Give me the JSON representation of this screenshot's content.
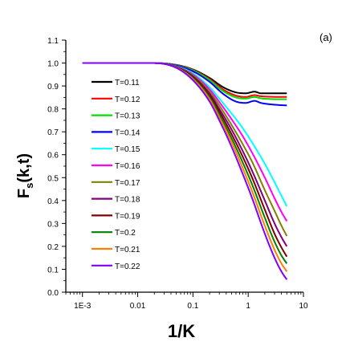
{
  "panel_label": "(a)",
  "chart_data": {
    "type": "line",
    "xlabel": "1/K",
    "ylabel": "F_s(k,t)",
    "ylabel_main": "F",
    "ylabel_sub": "s",
    "ylabel_args": "(k,t)",
    "x_scale": "log",
    "xlim": [
      0.0005,
      10
    ],
    "ylim": [
      0.0,
      1.1
    ],
    "x_ticks": [
      0.001,
      0.01,
      0.1,
      1,
      10
    ],
    "x_tick_labels": [
      "1E-3",
      "0.01",
      "0.1",
      "1",
      "10"
    ],
    "y_ticks": [
      0.0,
      0.1,
      0.2,
      0.3,
      0.4,
      0.5,
      0.6,
      0.7,
      0.8,
      0.9,
      1.0,
      1.1
    ],
    "y_tick_labels": [
      "0.0",
      "0.1",
      "0.2",
      "0.3",
      "0.4",
      "0.5",
      "0.6",
      "0.7",
      "0.8",
      "0.9",
      "1.0",
      "1.1"
    ],
    "grid": false,
    "legend_position": "left-center",
    "series": [
      {
        "name": "T=0.11",
        "color": "#000000",
        "x": [
          0.001,
          0.02,
          0.05,
          0.1,
          0.2,
          0.35,
          0.6,
          0.9,
          1.3,
          1.7,
          2.5,
          3.5,
          5.0
        ],
        "y": [
          1.0,
          1.0,
          0.992,
          0.972,
          0.935,
          0.895,
          0.872,
          0.868,
          0.875,
          0.868,
          0.868,
          0.868,
          0.868
        ]
      },
      {
        "name": "T=0.12",
        "color": "#ff0000",
        "x": [
          0.001,
          0.02,
          0.05,
          0.1,
          0.2,
          0.35,
          0.6,
          0.9,
          1.3,
          1.7,
          2.5,
          3.5,
          5.0
        ],
        "y": [
          1.0,
          1.0,
          0.991,
          0.97,
          0.93,
          0.885,
          0.858,
          0.852,
          0.86,
          0.855,
          0.853,
          0.852,
          0.852
        ]
      },
      {
        "name": "T=0.13",
        "color": "#00dd00",
        "x": [
          0.001,
          0.02,
          0.05,
          0.1,
          0.2,
          0.35,
          0.6,
          0.9,
          1.3,
          1.7,
          2.5,
          3.5,
          5.0
        ],
        "y": [
          1.0,
          1.0,
          0.99,
          0.968,
          0.926,
          0.878,
          0.85,
          0.845,
          0.852,
          0.846,
          0.843,
          0.842,
          0.842
        ]
      },
      {
        "name": "T=0.14",
        "color": "#0000ff",
        "x": [
          0.001,
          0.02,
          0.05,
          0.1,
          0.2,
          0.35,
          0.6,
          0.9,
          1.3,
          1.7,
          2.5,
          3.5,
          5.0
        ],
        "y": [
          1.0,
          1.0,
          0.989,
          0.964,
          0.918,
          0.866,
          0.832,
          0.826,
          0.835,
          0.826,
          0.82,
          0.817,
          0.815
        ]
      },
      {
        "name": "T=0.15",
        "color": "#00ffff",
        "x": [
          0.001,
          0.02,
          0.05,
          0.1,
          0.2,
          0.3,
          0.5,
          0.8,
          1.2,
          2.0,
          3.0,
          4.0,
          5.0
        ],
        "y": [
          1.0,
          1.0,
          0.986,
          0.955,
          0.895,
          0.845,
          0.78,
          0.715,
          0.65,
          0.56,
          0.48,
          0.42,
          0.375
        ]
      },
      {
        "name": "T=0.16",
        "color": "#ff00ff",
        "x": [
          0.001,
          0.02,
          0.05,
          0.1,
          0.2,
          0.3,
          0.5,
          0.8,
          1.2,
          2.0,
          3.0,
          4.0,
          5.0
        ],
        "y": [
          1.0,
          1.0,
          0.985,
          0.95,
          0.885,
          0.83,
          0.755,
          0.68,
          0.605,
          0.5,
          0.41,
          0.35,
          0.31
        ]
      },
      {
        "name": "T=0.17",
        "color": "#808000",
        "x": [
          0.001,
          0.02,
          0.05,
          0.1,
          0.2,
          0.3,
          0.5,
          0.8,
          1.2,
          2.0,
          3.0,
          4.0,
          5.0
        ],
        "y": [
          1.0,
          1.0,
          0.984,
          0.946,
          0.875,
          0.815,
          0.73,
          0.645,
          0.565,
          0.445,
          0.355,
          0.29,
          0.245
        ]
      },
      {
        "name": "T=0.18",
        "color": "#800080",
        "x": [
          0.001,
          0.02,
          0.05,
          0.1,
          0.2,
          0.3,
          0.5,
          0.8,
          1.2,
          2.0,
          3.0,
          4.0,
          5.0
        ],
        "y": [
          1.0,
          1.0,
          0.983,
          0.942,
          0.866,
          0.8,
          0.71,
          0.615,
          0.525,
          0.4,
          0.3,
          0.24,
          0.2
        ]
      },
      {
        "name": "T=0.19",
        "color": "#800000",
        "x": [
          0.001,
          0.02,
          0.05,
          0.1,
          0.2,
          0.3,
          0.5,
          0.8,
          1.2,
          2.0,
          3.0,
          4.0,
          5.0
        ],
        "y": [
          1.0,
          1.0,
          0.982,
          0.938,
          0.858,
          0.788,
          0.69,
          0.59,
          0.495,
          0.36,
          0.255,
          0.195,
          0.155
        ]
      },
      {
        "name": "T=0.2",
        "color": "#008000",
        "x": [
          0.001,
          0.02,
          0.05,
          0.1,
          0.2,
          0.3,
          0.5,
          0.8,
          1.2,
          2.0,
          3.0,
          4.0,
          5.0
        ],
        "y": [
          1.0,
          1.0,
          0.981,
          0.934,
          0.85,
          0.775,
          0.672,
          0.565,
          0.465,
          0.325,
          0.22,
          0.16,
          0.125
        ]
      },
      {
        "name": "T=0.21",
        "color": "#ff8000",
        "x": [
          0.001,
          0.02,
          0.05,
          0.1,
          0.2,
          0.3,
          0.5,
          0.8,
          1.2,
          2.0,
          3.0,
          4.0,
          5.0
        ],
        "y": [
          1.0,
          1.0,
          0.98,
          0.93,
          0.842,
          0.763,
          0.655,
          0.54,
          0.435,
          0.29,
          0.185,
          0.125,
          0.09
        ]
      },
      {
        "name": "T=0.22",
        "color": "#8000ff",
        "x": [
          0.001,
          0.02,
          0.05,
          0.1,
          0.2,
          0.3,
          0.5,
          0.8,
          1.2,
          2.0,
          3.0,
          4.0,
          5.0
        ],
        "y": [
          1.0,
          1.0,
          0.979,
          0.925,
          0.832,
          0.75,
          0.635,
          0.515,
          0.405,
          0.255,
          0.15,
          0.09,
          0.055
        ]
      }
    ]
  }
}
